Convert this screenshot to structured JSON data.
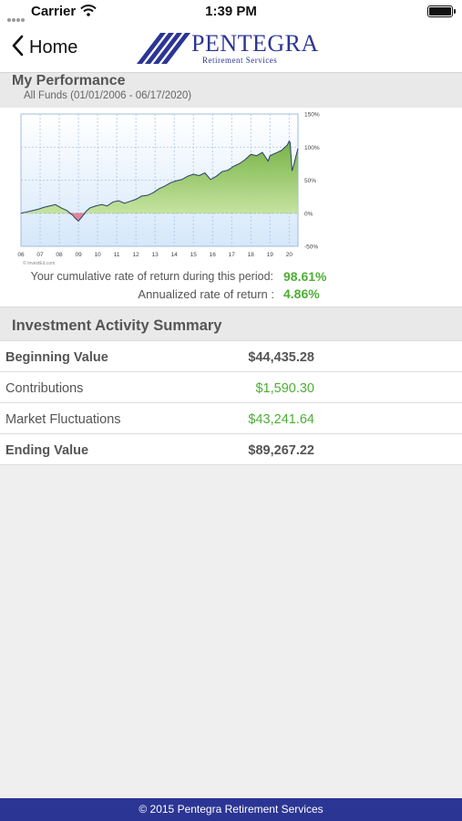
{
  "status_bar": {
    "carrier": "Carrier",
    "time": "1:39 PM"
  },
  "nav": {
    "back_label": "Home",
    "brand": "PENTEGRA",
    "brand_tagline": "Retirement Services"
  },
  "performance": {
    "title": "My Performance",
    "date_range": "All Funds (01/01/2006 - 06/17/2020)",
    "cumulative_label": "Your cumulative rate of return during this period:",
    "cumulative_value": "98.61%",
    "annualized_label": "Annualized rate of return :",
    "annualized_value": "4.86%"
  },
  "chart_data": {
    "type": "area",
    "x_tick_labels": [
      "06",
      "07",
      "08",
      "09",
      "10",
      "11",
      "12",
      "13",
      "14",
      "15",
      "16",
      "17",
      "18",
      "19",
      "20"
    ],
    "y_tick_labels": [
      "150%",
      "100%",
      "50%",
      "0%",
      "-50%"
    ],
    "ylim": [
      -50,
      150
    ],
    "xlim": [
      2006,
      2020.46
    ],
    "grid": true,
    "watermark": "© InvestEd.com",
    "series": [
      {
        "x": [
          2006.0,
          2006.3,
          2006.6,
          2006.9,
          2007.2,
          2007.5,
          2007.8,
          2008.1,
          2008.4,
          2008.7,
          2008.85,
          2009.0,
          2009.2,
          2009.4,
          2009.6,
          2009.9,
          2010.2,
          2010.5,
          2010.8,
          2011.1,
          2011.4,
          2011.7,
          2012.0,
          2012.3,
          2012.6,
          2012.9,
          2013.2,
          2013.5,
          2013.8,
          2014.1,
          2014.4,
          2014.7,
          2015.0,
          2015.3,
          2015.6,
          2015.9,
          2016.2,
          2016.5,
          2016.8,
          2017.1,
          2017.4,
          2017.7,
          2018.0,
          2018.3,
          2018.6,
          2018.9,
          2019.0,
          2019.3,
          2019.6,
          2019.9,
          2020.0,
          2020.05,
          2020.15,
          2020.25,
          2020.35,
          2020.46
        ],
        "values": [
          0,
          2,
          4,
          6,
          9,
          11,
          13,
          8,
          4,
          -3,
          -8,
          -12,
          -5,
          3,
          8,
          11,
          13,
          11,
          17,
          19,
          15,
          18,
          21,
          26,
          27,
          31,
          37,
          41,
          46,
          49,
          51,
          56,
          59,
          57,
          61,
          51,
          56,
          63,
          65,
          71,
          75,
          81,
          89,
          87,
          92,
          79,
          87,
          91,
          95,
          103,
          109,
          107,
          64,
          74,
          86,
          98
        ]
      }
    ]
  },
  "summary": {
    "title": "Investment Activity Summary",
    "rows": [
      {
        "label": "Beginning Value",
        "value": "$44,435.28"
      },
      {
        "label": "Contributions",
        "value": "$1,590.30"
      },
      {
        "label": "Market Fluctuations",
        "value": "$43,241.64"
      },
      {
        "label": "Ending Value",
        "value": "$89,267.22"
      }
    ]
  },
  "colors": {
    "brand": "#2b3594",
    "positive": "#4caf34",
    "area_fill": "#8ec65a",
    "negative_fill": "#e07a8c",
    "plot_bg": "#d6e8fa",
    "line": "#2a3d6e"
  },
  "footer": {
    "text": "© 2015 Pentegra Retirement Services"
  }
}
